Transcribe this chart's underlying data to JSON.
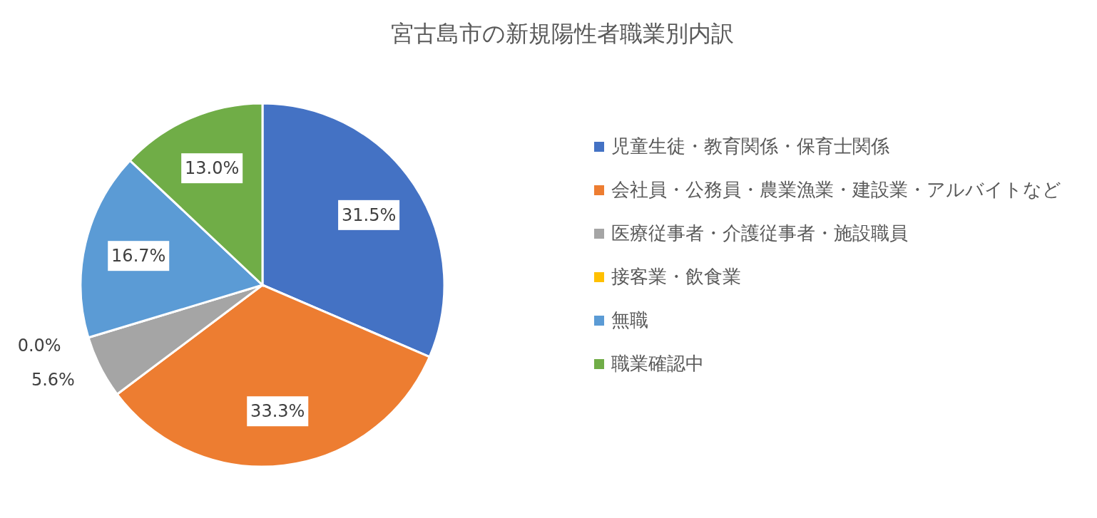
{
  "chart_data": {
    "type": "pie",
    "title": "宮古島市の新規陽性者職業別内訳",
    "categories": [
      "児童生徒・教育関係・保育士関係",
      "会社員・公務員・農業漁業・建設業・アルバイトなど",
      "医療従事者・介護従事者・施設職員",
      "接客業・飲食業",
      "無職",
      "職業確認中"
    ],
    "values": [
      31.5,
      33.3,
      5.6,
      0.0,
      16.7,
      13.0
    ],
    "value_labels": [
      "31.5%",
      "33.3%",
      "5.6%",
      "0.0%",
      "16.7%",
      "13.0%"
    ],
    "colors": [
      "#4472c4",
      "#ed7d31",
      "#a5a5a5",
      "#ffc000",
      "#5b9bd5",
      "#70ad47"
    ],
    "legend": "right"
  }
}
